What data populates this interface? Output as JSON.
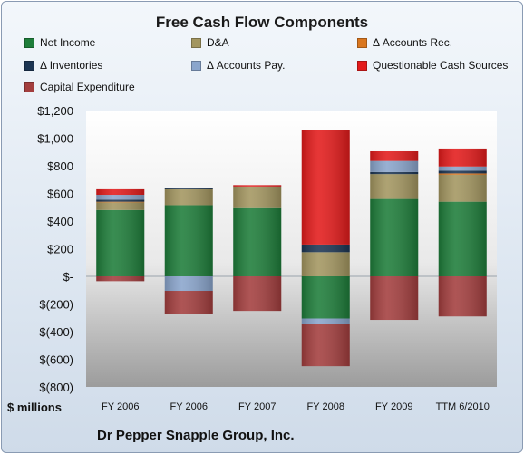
{
  "chart_data": {
    "type": "bar",
    "stacked": true,
    "title": "Free Cash Flow Components",
    "subtitle": "Dr Pepper Snapple Group, Inc.",
    "unit_label": "$ millions",
    "categories": [
      "FY 2006",
      "FY 2006",
      "FY 2007",
      "FY 2008",
      "FY 2009",
      "TTM 6/2010"
    ],
    "ylim": [
      -800,
      1200
    ],
    "yticks": [
      1200,
      1000,
      800,
      600,
      400,
      200,
      0,
      -200,
      -400,
      -600,
      -800
    ],
    "ytick_labels": [
      "$1,200",
      "$1,000",
      "$800",
      "$600",
      "$400",
      "$200",
      "$-",
      "$(200)",
      "$(400)",
      "$(600)",
      "$(800)"
    ],
    "legend_position": "top",
    "series": [
      {
        "name": "Net Income",
        "color": "#1e7d3a",
        "values": [
          480,
          515,
          500,
          -305,
          560,
          540
        ]
      },
      {
        "name": "D&A",
        "color": "#a39660",
        "values": [
          55,
          115,
          150,
          175,
          180,
          195
        ]
      },
      {
        "name": "Δ Accounts Rec.",
        "color": "#d9761f",
        "values": [
          5,
          0,
          0,
          0,
          0,
          10
        ]
      },
      {
        "name": "Δ Inventories",
        "color": "#1c3553",
        "values": [
          15,
          10,
          0,
          55,
          15,
          20
        ]
      },
      {
        "name": "Δ Accounts Pay.",
        "color": "#8aa5cc",
        "values": [
          35,
          -105,
          0,
          -40,
          80,
          30
        ]
      },
      {
        "name": "Questionable Cash Sources",
        "color": "#e31b1b",
        "values": [
          40,
          0,
          10,
          830,
          70,
          130
        ]
      },
      {
        "name": "Capital Expenditure",
        "color": "#a33e3e",
        "values": [
          -35,
          -165,
          -250,
          -305,
          -315,
          -290
        ]
      }
    ]
  }
}
